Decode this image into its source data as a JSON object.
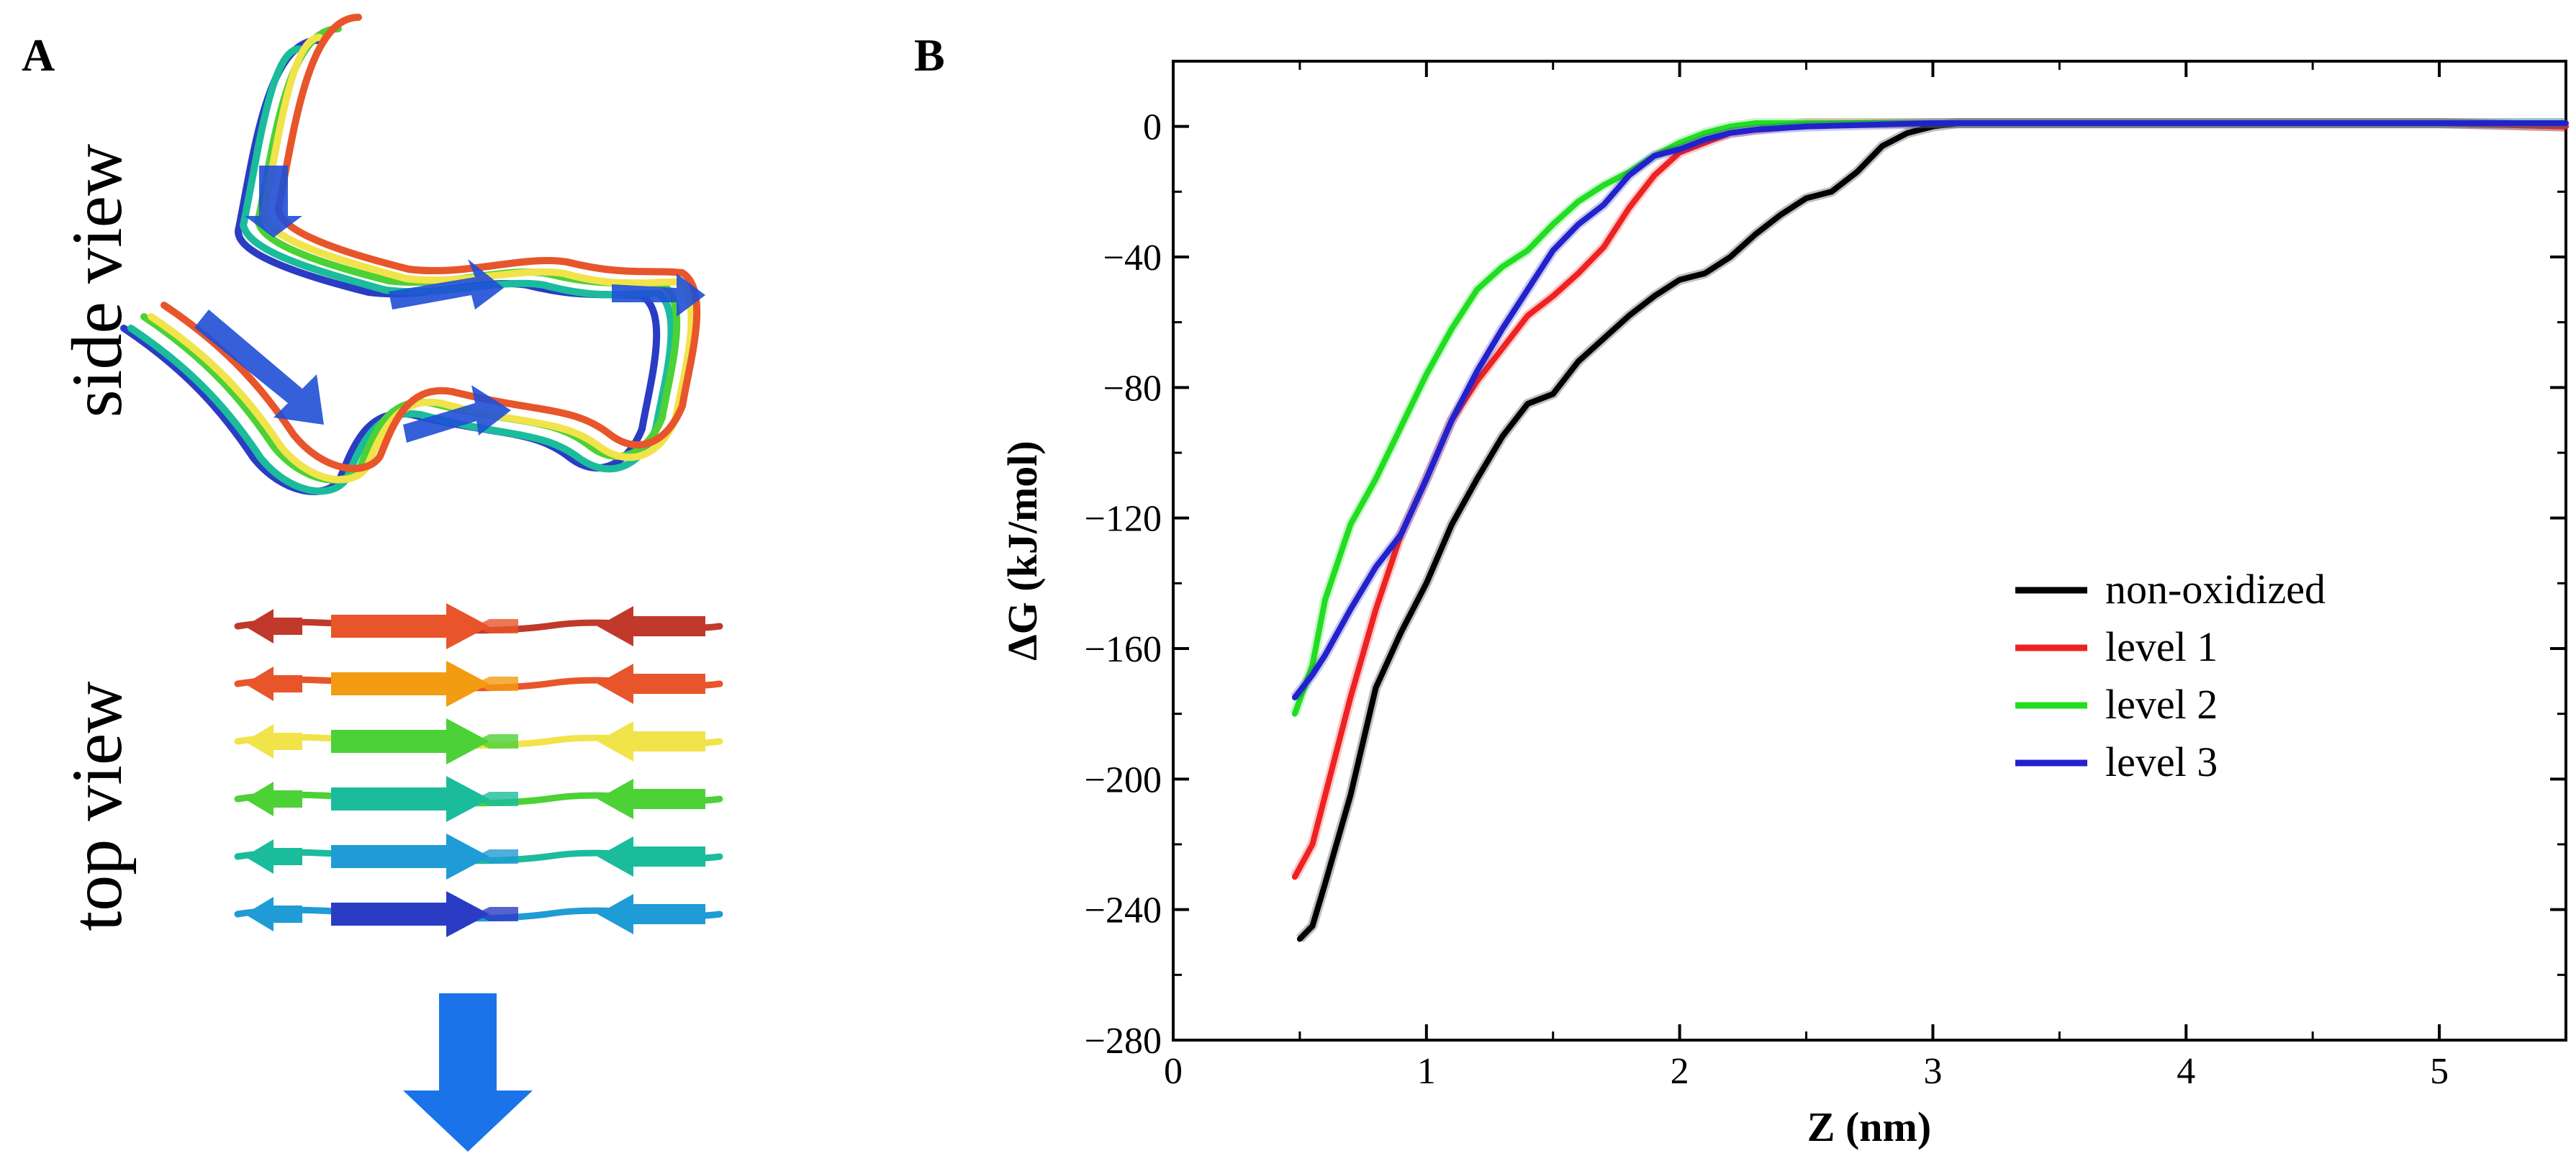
{
  "panels": {
    "a_letter": "A",
    "b_letter": "B",
    "side_view_label": "side view",
    "top_view_label": "top view"
  },
  "strand_colors": [
    "#c0392b",
    "#e8552b",
    "#f39c12",
    "#f1e34a",
    "#4cd137",
    "#1abc9c",
    "#1f9bd6",
    "#2b3cc4"
  ],
  "chart_data": {
    "type": "line",
    "xlabel": "Z (nm)",
    "ylabel": "ΔG (kJ/mol)",
    "xlim": [
      0,
      5.5
    ],
    "ylim": [
      -280,
      20
    ],
    "xticks": [
      0,
      1,
      2,
      3,
      4,
      5
    ],
    "yticks": [
      0,
      -40,
      -80,
      -120,
      -160,
      -200,
      -240,
      -280
    ],
    "ytick_labels": [
      "0",
      "-40",
      "-80",
      "-120",
      "-160",
      "-200",
      "-240",
      "-280"
    ],
    "legend_position": "right-middle",
    "series": [
      {
        "name": "non-oxidized",
        "color": "#000000",
        "x": [
          0.5,
          0.55,
          0.6,
          0.7,
          0.8,
          0.9,
          1.0,
          1.1,
          1.2,
          1.3,
          1.4,
          1.5,
          1.6,
          1.7,
          1.8,
          1.9,
          2.0,
          2.1,
          2.2,
          2.3,
          2.4,
          2.5,
          2.6,
          2.7,
          2.8,
          2.9,
          3.0,
          3.1,
          3.5,
          4.0,
          4.5,
          5.0,
          5.5
        ],
        "y": [
          -249,
          -245,
          -232,
          -205,
          -172,
          -155,
          -140,
          -122,
          -108,
          -95,
          -85,
          -82,
          -72,
          -65,
          -58,
          -52,
          -47,
          -45,
          -40,
          -33,
          -27,
          -22,
          -20,
          -14,
          -6,
          -2,
          0,
          1,
          1,
          1,
          1,
          1,
          0
        ]
      },
      {
        "name": "level 1",
        "color": "#ee2222",
        "x": [
          0.48,
          0.55,
          0.6,
          0.7,
          0.8,
          0.9,
          1.0,
          1.1,
          1.2,
          1.3,
          1.4,
          1.5,
          1.6,
          1.7,
          1.8,
          1.9,
          2.0,
          2.1,
          2.2,
          2.3,
          2.4,
          2.5,
          2.6,
          3.0,
          3.5,
          4.0,
          4.5,
          5.0,
          5.5
        ],
        "y": [
          -230,
          -220,
          -205,
          -175,
          -148,
          -125,
          -108,
          -90,
          -78,
          -68,
          -58,
          -52,
          -45,
          -37,
          -25,
          -15,
          -8,
          -5,
          -2,
          -1,
          0,
          1,
          1,
          1,
          1,
          1,
          1,
          1,
          0
        ]
      },
      {
        "name": "level 2",
        "color": "#22dd22",
        "x": [
          0.48,
          0.55,
          0.6,
          0.7,
          0.8,
          0.9,
          1.0,
          1.1,
          1.2,
          1.3,
          1.4,
          1.5,
          1.6,
          1.7,
          1.8,
          1.9,
          2.0,
          2.1,
          2.2,
          2.3,
          2.5,
          3.0,
          3.5,
          4.0,
          4.5,
          5.0,
          5.5
        ],
        "y": [
          -180,
          -165,
          -145,
          -122,
          -108,
          -92,
          -76,
          -62,
          -50,
          -43,
          -38,
          -30,
          -23,
          -18,
          -14,
          -9,
          -5,
          -2,
          0,
          1,
          1,
          1,
          1,
          1,
          1,
          1,
          1
        ]
      },
      {
        "name": "level 3",
        "color": "#2222cc",
        "x": [
          0.48,
          0.55,
          0.6,
          0.7,
          0.8,
          0.9,
          1.0,
          1.1,
          1.2,
          1.3,
          1.4,
          1.5,
          1.6,
          1.7,
          1.8,
          1.9,
          2.0,
          2.1,
          2.2,
          2.3,
          2.5,
          3.0,
          3.5,
          4.0,
          4.5,
          5.0,
          5.5
        ],
        "y": [
          -175,
          -168,
          -162,
          -148,
          -135,
          -125,
          -108,
          -90,
          -75,
          -62,
          -50,
          -38,
          -30,
          -24,
          -15,
          -9,
          -7,
          -4,
          -2,
          -1,
          0,
          1,
          1,
          1,
          1,
          1,
          1
        ]
      }
    ]
  }
}
